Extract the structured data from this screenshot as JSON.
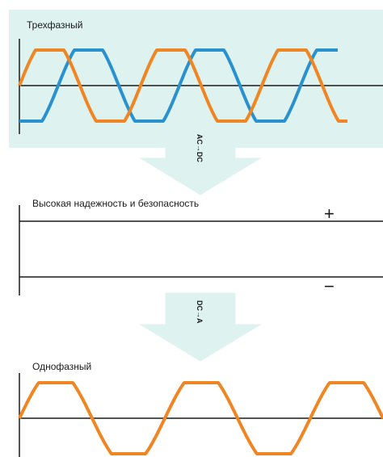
{
  "sections": {
    "three_phase": {
      "label": "Трехфазный"
    },
    "dc": {
      "label": "Высокая надежность и безопасность",
      "plus": "+",
      "minus": "−"
    },
    "single_phase": {
      "label": "Однофазный"
    }
  },
  "arrows": {
    "first": {
      "label": "AC→DC"
    },
    "second": {
      "label": "DC→A"
    }
  },
  "colors": {
    "panel": "#def2ef",
    "phase_orange": "#f08523",
    "phase_blue": "#2a91cf",
    "arrow_fill": "#def2ef",
    "axis": "#1a1a1a"
  }
}
